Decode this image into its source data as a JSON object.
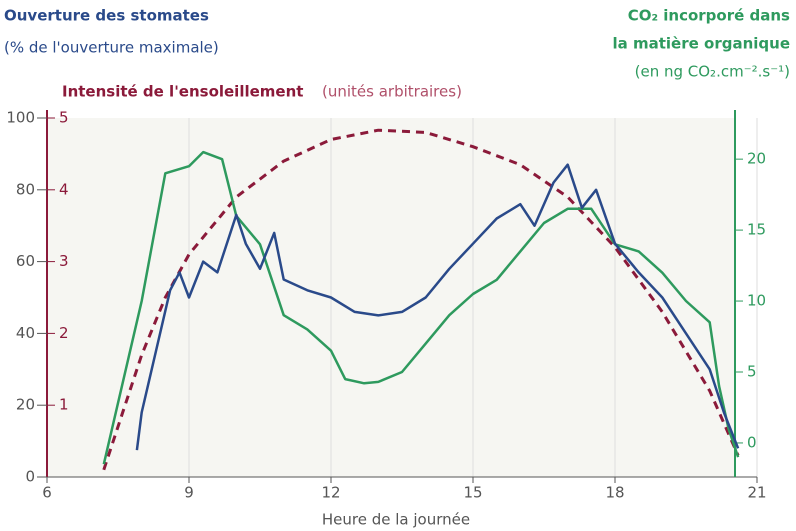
{
  "chart_data": {
    "type": "line",
    "y_title": [
      "Ouverture des stomates",
      "(% de l'ouverture maximale)"
    ],
    "y3_title": [
      "Intensité de l'ensoleillement",
      "(unités arbitraires)"
    ],
    "y2_title": [
      "CO₂ incorporé dans",
      "la matière organique",
      "(en ng CO₂.cm⁻².s⁻¹)"
    ],
    "x_label": "Heure de la journée",
    "xlim": [
      6,
      21
    ],
    "xticks": [
      6,
      9,
      12,
      15,
      18,
      21
    ],
    "ylim": [
      0,
      100
    ],
    "yticks": [
      0,
      20,
      40,
      60,
      80,
      100
    ],
    "y3lim": [
      0,
      5
    ],
    "y3ticks": [
      1,
      2,
      3,
      4,
      5
    ],
    "y2lim": [
      -2.4,
      22.9
    ],
    "y2ticks": [
      0,
      5,
      10,
      15,
      20
    ],
    "y_color": "#2a4a8a",
    "y3_color": "#8b1a3a",
    "y2_color": "#2e9a5e",
    "grid": true,
    "series": [
      {
        "axis": "y3",
        "color": "#8b1a3a",
        "dashed": true,
        "x": [
          7.2,
          7.6,
          8,
          8.5,
          9,
          10,
          11,
          12,
          13,
          14,
          15,
          16,
          17,
          18,
          19,
          20,
          20.6
        ],
        "values": [
          0.1,
          0.9,
          1.7,
          2.5,
          3.1,
          3.9,
          4.4,
          4.7,
          4.83,
          4.8,
          4.6,
          4.35,
          3.9,
          3.2,
          2.3,
          1.2,
          0.3
        ]
      },
      {
        "axis": "y2",
        "color": "#2e9a5e",
        "dashed": false,
        "x": [
          7.2,
          8,
          8.5,
          9,
          9.3,
          9.7,
          10,
          10.5,
          11,
          11.5,
          12,
          12.3,
          12.7,
          13,
          13.5,
          14,
          14.5,
          15,
          15.5,
          16,
          16.5,
          17,
          17.5,
          18,
          18.5,
          19,
          19.5,
          20,
          20.2,
          20.4,
          20.6
        ],
        "values": [
          -1.5,
          10,
          19,
          19.5,
          20.5,
          20,
          16,
          14,
          9,
          8,
          6.5,
          4.5,
          4.2,
          4.3,
          5,
          7,
          9,
          10.5,
          11.5,
          13.5,
          15.5,
          16.5,
          16.5,
          14,
          13.5,
          12,
          10,
          8.5,
          4,
          1,
          -1
        ]
      },
      {
        "axis": "y",
        "color": "#2a4a8a",
        "dashed": false,
        "x": [
          7.9,
          8,
          8.3,
          8.6,
          8.8,
          9,
          9.3,
          9.6,
          10,
          10.2,
          10.5,
          10.8,
          11,
          11.5,
          12,
          12.5,
          13,
          13.5,
          14,
          14.5,
          15,
          15.5,
          16,
          16.3,
          16.7,
          17,
          17.3,
          17.6,
          18,
          18.5,
          19,
          19.5,
          20,
          20.3,
          20.6
        ],
        "values": [
          7.5,
          18,
          35,
          52,
          57,
          50,
          60,
          57,
          73,
          65,
          58,
          68,
          55,
          52,
          50,
          46,
          45,
          46,
          50,
          58,
          65,
          72,
          76,
          70,
          82,
          87,
          75,
          80,
          65,
          57,
          50,
          40,
          30,
          18,
          8
        ]
      }
    ]
  }
}
